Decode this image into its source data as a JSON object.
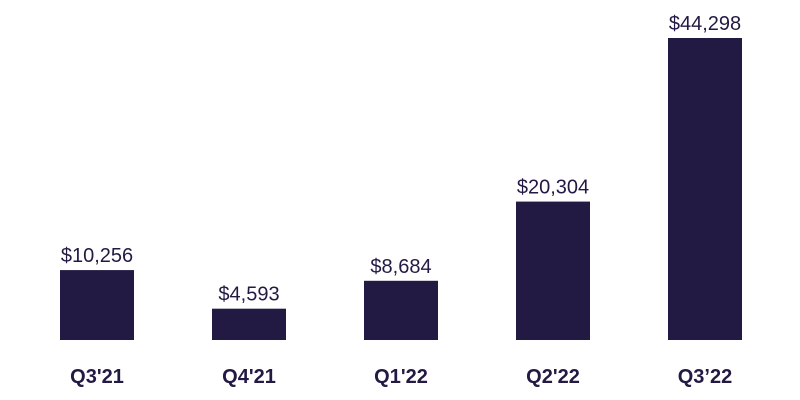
{
  "chart_data": {
    "type": "bar",
    "categories": [
      "Q3'21",
      "Q4'21",
      "Q1'22",
      "Q2'22",
      "Q3’22"
    ],
    "values": [
      10256,
      4593,
      8684,
      20304,
      44298
    ],
    "data_labels": [
      "$10,256",
      "$4,593",
      "$8,684",
      "$20,304",
      "$44,298"
    ],
    "title": "",
    "xlabel": "",
    "ylabel": "",
    "ylim": [
      0,
      44298
    ],
    "grid": false,
    "legend": "none",
    "colors": {
      "bar": "#231a44",
      "text": "#231a44",
      "background": "#ffffff"
    }
  }
}
